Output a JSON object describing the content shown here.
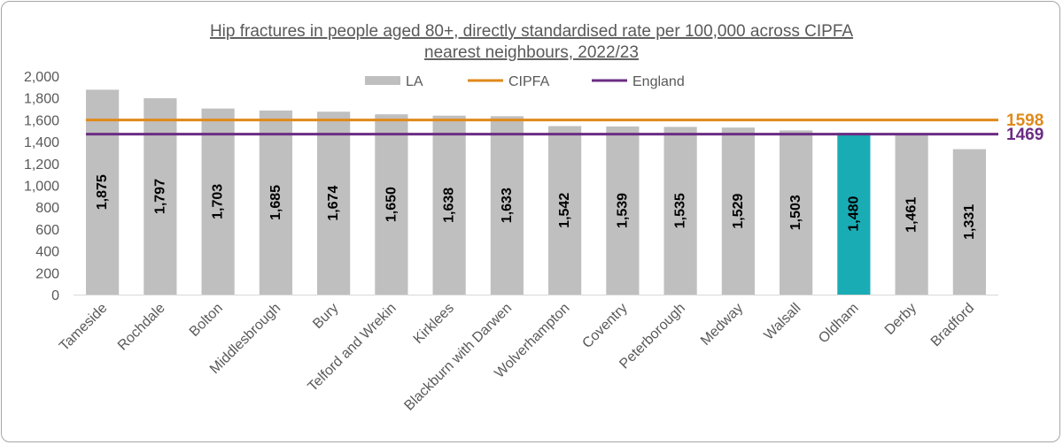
{
  "chart_data": {
    "type": "bar",
    "title_line1": "Hip fractures in people aged 80+, directly standardised rate per 100,000 across CIPFA",
    "title_line2": "nearest neighbours, 2022/23",
    "categories": [
      "Tameside",
      "Rochdale",
      "Bolton",
      "Middlesbrough",
      "Bury",
      "Telford and Wrekin",
      "Kirklees",
      "Blackburn with Darwen",
      "Wolverhampton",
      "Coventry",
      "Peterborough",
      "Medway",
      "Walsall",
      "Oldham",
      "Derby",
      "Bradford"
    ],
    "series": [
      {
        "name": "LA",
        "values": [
          1875,
          1797,
          1703,
          1685,
          1674,
          1650,
          1638,
          1633,
          1542,
          1539,
          1535,
          1529,
          1503,
          1480,
          1461,
          1331
        ],
        "color": "#bfbfbf"
      }
    ],
    "value_labels": [
      "1,875",
      "1,797",
      "1,703",
      "1,685",
      "1,674",
      "1,650",
      "1,638",
      "1,633",
      "1,542",
      "1,539",
      "1,535",
      "1,529",
      "1,503",
      "1,480",
      "1,461",
      "1,331"
    ],
    "highlight": {
      "category": "Oldham",
      "color": "#1aacb5"
    },
    "reference_lines": [
      {
        "name": "CIPFA",
        "value": 1598,
        "label": "1598",
        "color": "#e08a1a"
      },
      {
        "name": "England",
        "value": 1469,
        "label": "1469",
        "color": "#6b2c83"
      }
    ],
    "ylim": [
      0,
      2000
    ],
    "yticks": [
      0,
      200,
      400,
      600,
      800,
      1000,
      1200,
      1400,
      1600,
      1800,
      2000
    ],
    "ytick_labels": [
      "0",
      "200",
      "400",
      "600",
      "800",
      "1,000",
      "1,200",
      "1,400",
      "1,600",
      "1,800",
      "2,000"
    ],
    "legend_position": "top",
    "grid": false
  }
}
